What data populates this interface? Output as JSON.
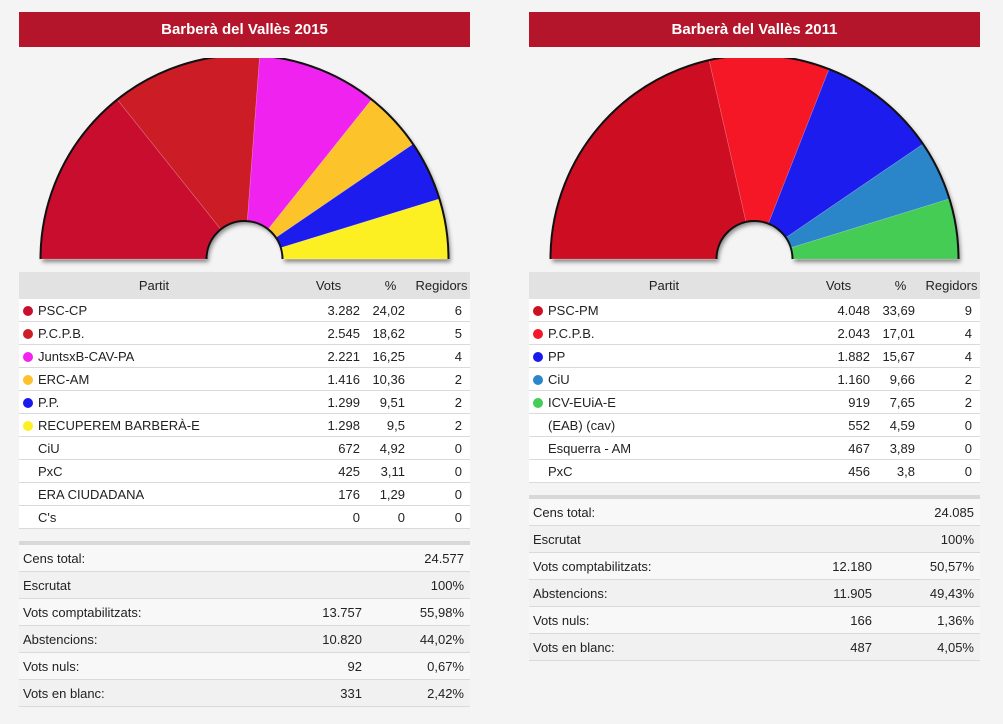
{
  "chart_data": [
    {
      "type": "hemicycle",
      "title": "Barberà del Vallès 2015",
      "columns": {
        "party": "Partit",
        "votes": "Vots",
        "pct": "%",
        "seats": "Regidors"
      },
      "parties": [
        {
          "name": "PSC-CP",
          "votes": "3.282",
          "pct": "24,02",
          "seats": 6,
          "color": "#c8102e"
        },
        {
          "name": "P.C.P.B.",
          "votes": "2.545",
          "pct": "18,62",
          "seats": 5,
          "color": "#cc1f28"
        },
        {
          "name": "JuntsxB-CAV-PA",
          "votes": "2.221",
          "pct": "16,25",
          "seats": 4,
          "color": "#f023f0"
        },
        {
          "name": "ERC-AM",
          "votes": "1.416",
          "pct": "10,36",
          "seats": 2,
          "color": "#fdc32b"
        },
        {
          "name": "P.P.",
          "votes": "1.299",
          "pct": "9,51",
          "seats": 2,
          "color": "#1a1aee"
        },
        {
          "name": "RECUPEREM BARBERÀ-E",
          "votes": "1.298",
          "pct": "9,5",
          "seats": 2,
          "color": "#fdf020"
        },
        {
          "name": "CiU",
          "votes": "672",
          "pct": "4,92",
          "seats": 0,
          "color": ""
        },
        {
          "name": "PxC",
          "votes": "425",
          "pct": "3,11",
          "seats": 0,
          "color": ""
        },
        {
          "name": "ERA CIUDADANA",
          "votes": "176",
          "pct": "1,29",
          "seats": 0,
          "color": ""
        },
        {
          "name": "C's",
          "votes": "0",
          "pct": "0",
          "seats": 0,
          "color": ""
        }
      ],
      "summary": [
        {
          "label": "Cens total:",
          "value": "",
          "pct": "24.577"
        },
        {
          "label": "Escrutat",
          "value": "",
          "pct": "100%"
        },
        {
          "label": "Vots comptabilitzats:",
          "value": "13.757",
          "pct": "55,98%"
        },
        {
          "label": "Abstencions:",
          "value": "10.820",
          "pct": "44,02%"
        },
        {
          "label": "Vots nuls:",
          "value": "92",
          "pct": "0,67%"
        },
        {
          "label": "Vots en blanc:",
          "value": "331",
          "pct": "2,42%"
        }
      ]
    },
    {
      "type": "hemicycle",
      "title": "Barberà del Vallès 2011",
      "columns": {
        "party": "Partit",
        "votes": "Vots",
        "pct": "%",
        "seats": "Regidors"
      },
      "parties": [
        {
          "name": "PSC-PM",
          "votes": "4.048",
          "pct": "33,69",
          "seats": 9,
          "color": "#cc1122"
        },
        {
          "name": "P.C.P.B.",
          "votes": "2.043",
          "pct": "17,01",
          "seats": 4,
          "color": "#f51828"
        },
        {
          "name": "PP",
          "votes": "1.882",
          "pct": "15,67",
          "seats": 4,
          "color": "#1a1aee"
        },
        {
          "name": "CiU",
          "votes": "1.160",
          "pct": "9,66",
          "seats": 2,
          "color": "#2b85c9"
        },
        {
          "name": "ICV-EUiA-E",
          "votes": "919",
          "pct": "7,65",
          "seats": 2,
          "color": "#44cc55"
        },
        {
          "name": "(EAB) (cav)",
          "votes": "552",
          "pct": "4,59",
          "seats": 0,
          "color": ""
        },
        {
          "name": "Esquerra - AM",
          "votes": "467",
          "pct": "3,89",
          "seats": 0,
          "color": ""
        },
        {
          "name": "PxC",
          "votes": "456",
          "pct": "3,8",
          "seats": 0,
          "color": ""
        }
      ],
      "summary": [
        {
          "label": "Cens total:",
          "value": "",
          "pct": "24.085"
        },
        {
          "label": "Escrutat",
          "value": "",
          "pct": "100%"
        },
        {
          "label": "Vots comptabilitzats:",
          "value": "12.180",
          "pct": "50,57%"
        },
        {
          "label": "Abstencions:",
          "value": "11.905",
          "pct": "49,43%"
        },
        {
          "label": "Vots nuls:",
          "value": "166",
          "pct": "1,36%"
        },
        {
          "label": "Vots en blanc:",
          "value": "487",
          "pct": "4,05%"
        }
      ]
    }
  ]
}
